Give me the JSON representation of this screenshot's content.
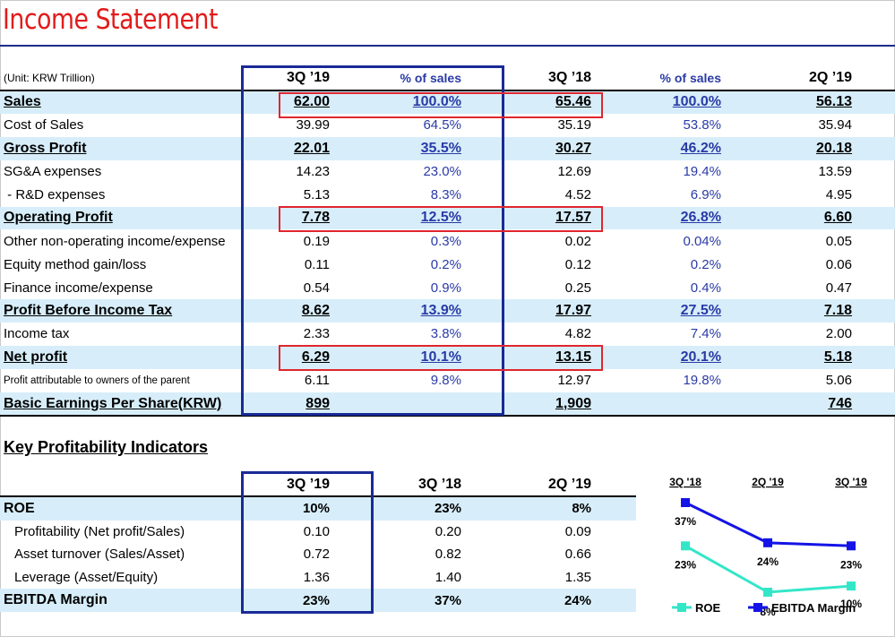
{
  "title": "Income Statement",
  "unit": "(Unit: KRW Trillion)",
  "columns": [
    "3Q ’19",
    "% of sales",
    "3Q ’18",
    "% of sales",
    "2Q ’19"
  ],
  "rows": [
    {
      "label": "Sales",
      "v1": "62.00",
      "p1": "100.0%",
      "v2": "65.46",
      "p2": "100.0%",
      "v3": "56.13"
    },
    {
      "label": "Cost of Sales",
      "v1": "39.99",
      "p1": "64.5%",
      "v2": "35.19",
      "p2": "53.8%",
      "v3": "35.94"
    },
    {
      "label": "Gross Profit",
      "v1": "22.01",
      "p1": "35.5%",
      "v2": "30.27",
      "p2": "46.2%",
      "v3": "20.18"
    },
    {
      "label": "SG&A expenses",
      "v1": "14.23",
      "p1": "23.0%",
      "v2": "12.69",
      "p2": "19.4%",
      "v3": "13.59"
    },
    {
      "label": " - R&D expenses",
      "v1": "5.13",
      "p1": "8.3%",
      "v2": "4.52",
      "p2": "6.9%",
      "v3": "4.95"
    },
    {
      "label": "Operating Profit",
      "v1": "7.78",
      "p1": "12.5%",
      "v2": "17.57",
      "p2": "26.8%",
      "v3": "6.60"
    },
    {
      "label": "Other non-operating income/expense",
      "v1": "0.19",
      "p1": "0.3%",
      "v2": "0.02",
      "p2": "0.04%",
      "v3": "0.05"
    },
    {
      "label": "Equity method gain/loss",
      "v1": "0.11",
      "p1": "0.2%",
      "v2": "0.12",
      "p2": "0.2%",
      "v3": "0.06"
    },
    {
      "label": "Finance income/expense",
      "v1": "0.54",
      "p1": "0.9%",
      "v2": "0.25",
      "p2": "0.4%",
      "v3": "0.47"
    },
    {
      "label": "Profit Before Income Tax",
      "v1": "8.62",
      "p1": "13.9%",
      "v2": "17.97",
      "p2": "27.5%",
      "v3": "7.18"
    },
    {
      "label": "Income tax",
      "v1": "2.33",
      "p1": "3.8%",
      "v2": "4.82",
      "p2": "7.4%",
      "v3": "2.00"
    },
    {
      "label": "Net profit",
      "v1": "6.29",
      "p1": "10.1%",
      "v2": "13.15",
      "p2": "20.1%",
      "v3": "5.18"
    },
    {
      "label": "Profit attributable to owners of the parent",
      "v1": "6.11",
      "p1": "9.8%",
      "v2": "12.97",
      "p2": "19.8%",
      "v3": "5.06"
    },
    {
      "label": "Basic Earnings Per Share(KRW)",
      "v1": "899",
      "p1": "",
      "v2": "1,909",
      "p2": "",
      "v3": "746"
    }
  ],
  "kpi": {
    "title": "Key Profitability Indicators",
    "columns": [
      "3Q ’19",
      "3Q ’18",
      "2Q ’19"
    ],
    "rows": [
      {
        "label": "ROE",
        "v1": "10%",
        "v2": "23%",
        "v3": "8%"
      },
      {
        "label": "Profitability (Net profit/Sales)",
        "v1": "0.10",
        "v2": "0.20",
        "v3": "0.09"
      },
      {
        "label": "Asset turnover (Sales/Asset)",
        "v1": "0.72",
        "v2": "0.82",
        "v3": "0.66"
      },
      {
        "label": "Leverage (Asset/Equity)",
        "v1": "1.36",
        "v2": "1.40",
        "v3": "1.35"
      },
      {
        "label": "EBITDA Margin",
        "v1": "23%",
        "v2": "37%",
        "v3": "24%"
      }
    ]
  },
  "chart_data": {
    "type": "line",
    "categories": [
      "3Q '18",
      "2Q '19",
      "3Q '19"
    ],
    "series": [
      {
        "name": "ROE",
        "values": [
          23,
          8,
          10
        ],
        "labels": [
          "23%",
          "8%",
          "10%"
        ],
        "color": "#33e6c8"
      },
      {
        "name": "EBITDA Margin",
        "values": [
          37,
          24,
          23
        ],
        "labels": [
          "37%",
          "24%",
          "23%"
        ],
        "color": "#1414e6"
      }
    ],
    "legend_position": "bottom"
  },
  "colors": {
    "title": "#e21b1b",
    "highlight_row": "#d7eefa",
    "box_blue": "#1a2a96",
    "box_red": "#e0262e",
    "pct_text": "#2a3aa6"
  }
}
